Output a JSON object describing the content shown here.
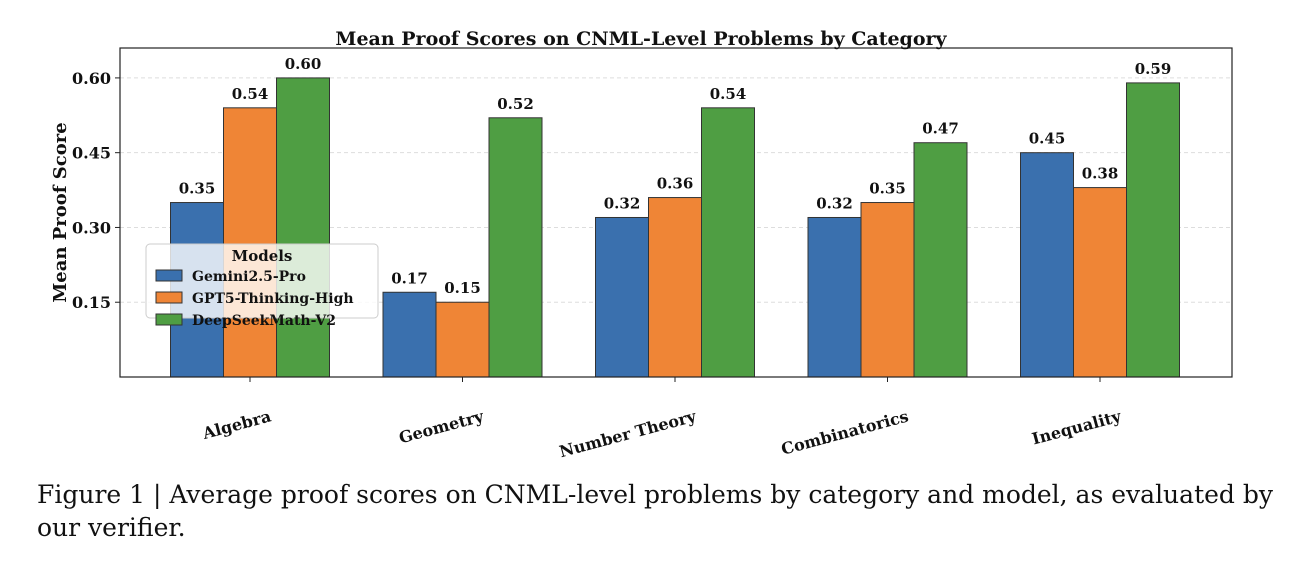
{
  "chart_data": {
    "type": "bar",
    "title": "Mean Proof Scores on CNML-Level Problems by Category",
    "xlabel": "",
    "ylabel": "Mean Proof Score",
    "categories": [
      "Algebra",
      "Geometry",
      "Number Theory",
      "Combinatorics",
      "Inequality"
    ],
    "series": [
      {
        "name": "Gemini2.5-Pro",
        "color": "#3a70ae",
        "values": [
          0.35,
          0.17,
          0.32,
          0.32,
          0.45
        ]
      },
      {
        "name": "GPT5-Thinking-High",
        "color": "#ef8536",
        "values": [
          0.54,
          0.15,
          0.36,
          0.35,
          0.38
        ]
      },
      {
        "name": "DeepSeekMath-V2",
        "color": "#4f9e43",
        "values": [
          0.6,
          0.52,
          0.54,
          0.47,
          0.59
        ]
      }
    ],
    "ylim": [
      0,
      0.66
    ],
    "yticks": [
      "0.15",
      "0.30",
      "0.45",
      "0.60"
    ],
    "grid": "horizontal dashed",
    "legend": {
      "title": "Models",
      "placement": "center-left"
    },
    "data_labels": true
  },
  "caption": "Figure 1 | Average proof scores on CNML-level problems by category and model, as evaluated by our verifier."
}
